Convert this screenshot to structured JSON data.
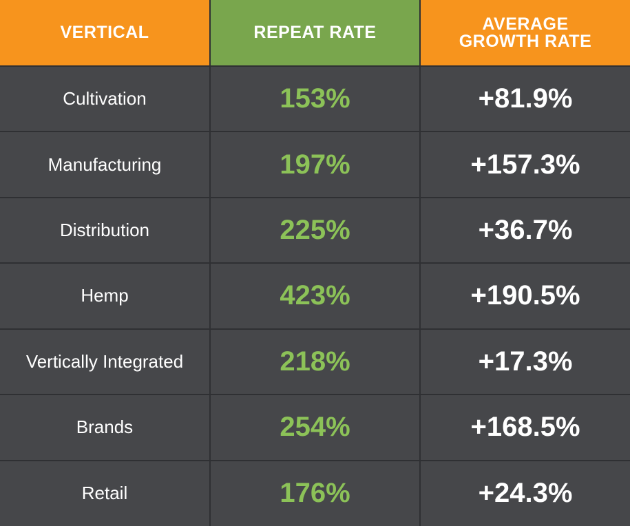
{
  "chart_data": {
    "type": "table",
    "columns": [
      "VERTICAL",
      "REPEAT RATE",
      "AVERAGE GROWTH RATE"
    ],
    "header_colors": [
      "#f7941d",
      "#79a64d",
      "#f7941d"
    ],
    "rows": [
      {
        "vertical": "Cultivation",
        "repeat_rate": "153%",
        "growth_rate": "+81.9%"
      },
      {
        "vertical": "Manufacturing",
        "repeat_rate": "197%",
        "growth_rate": "+157.3%"
      },
      {
        "vertical": "Distribution",
        "repeat_rate": "225%",
        "growth_rate": "+36.7%"
      },
      {
        "vertical": "Hemp",
        "repeat_rate": "423%",
        "growth_rate": "+190.5%"
      },
      {
        "vertical": "Vertically Integrated",
        "repeat_rate": "218%",
        "growth_rate": "+17.3%"
      },
      {
        "vertical": "Brands",
        "repeat_rate": "254%",
        "growth_rate": "+168.5%"
      },
      {
        "vertical": "Retail",
        "repeat_rate": "176%",
        "growth_rate": "+24.3%"
      }
    ],
    "value_colors": {
      "repeat_rate": "#8cc258",
      "growth_rate": "#ffffff"
    }
  }
}
